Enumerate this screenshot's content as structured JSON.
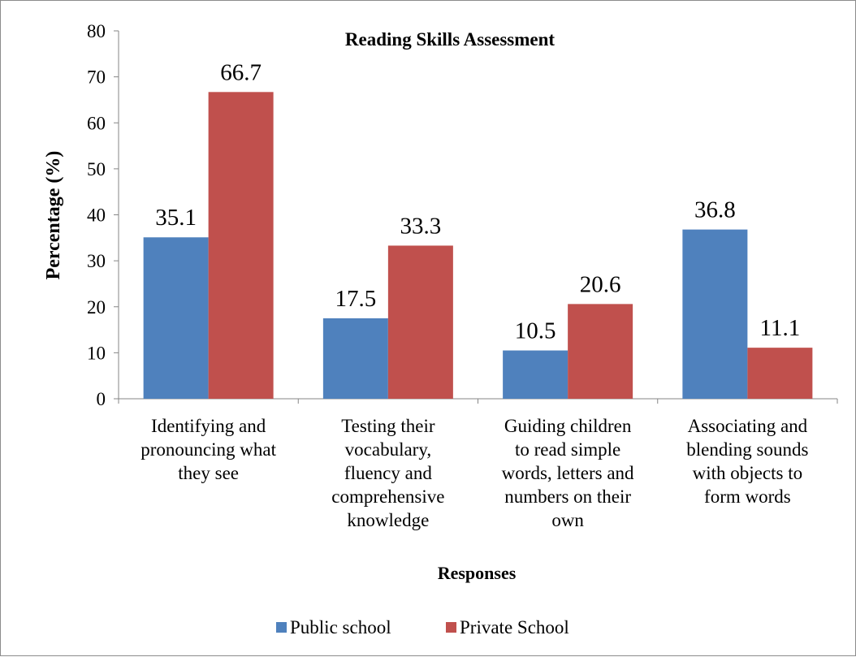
{
  "chart_data": {
    "type": "bar",
    "title": "Reading Skills Assessment",
    "xlabel": "Responses",
    "ylabel": "Percentage (%)",
    "ylim": [
      0,
      80
    ],
    "yticks": [
      "0",
      "10",
      "20",
      "30",
      "40",
      "50",
      "60",
      "70",
      "80"
    ],
    "ytick_values": [
      0,
      10,
      20,
      30,
      40,
      50,
      60,
      70,
      80
    ],
    "grid": false,
    "legend_position": "bottom",
    "categories": [
      "Identifying and pronouncing what they see",
      "Testing their vocabulary, fluency and comprehensive knowledge",
      "Guiding children to read simple words, letters and numbers on their own",
      "Associating and blending sounds with objects to form words"
    ],
    "category_lines": [
      [
        "Identifying and",
        "pronouncing what",
        "they see"
      ],
      [
        "Testing their",
        "vocabulary,",
        "fluency and",
        "comprehensive",
        "knowledge"
      ],
      [
        "Guiding children",
        "to read simple",
        "words, letters and",
        "numbers on their",
        "own"
      ],
      [
        "Associating and",
        "blending sounds",
        "with objects to",
        "form words"
      ]
    ],
    "series": [
      {
        "name": "Public school",
        "color": "#4f81bd",
        "values": [
          35.1,
          17.5,
          10.5,
          36.8
        ],
        "labels": [
          "35.1",
          "17.5",
          "10.5",
          "36.8"
        ]
      },
      {
        "name": "Private School",
        "color": "#c0504d",
        "values": [
          66.7,
          33.3,
          20.6,
          11.1
        ],
        "labels": [
          "66.7",
          "33.3",
          "20.6",
          "11.1"
        ]
      }
    ]
  }
}
